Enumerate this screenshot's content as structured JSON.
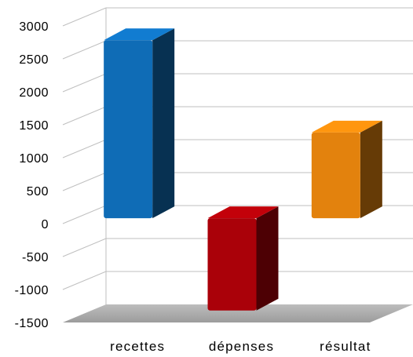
{
  "chart_data": {
    "type": "bar",
    "three_d": true,
    "grid": true,
    "categories": [
      "recettes",
      "dépenses",
      "résultat"
    ],
    "values": [
      2700,
      -1400,
      1300
    ],
    "colors": [
      "#0f6cb6",
      "#aa0109",
      "#e3820d"
    ],
    "ylim": [
      -1500,
      3000
    ],
    "yticks": [
      3000,
      2500,
      2000,
      1500,
      1000,
      500,
      0,
      -500,
      -1000,
      -1500
    ],
    "title": "",
    "xlabel": "",
    "ylabel": ""
  }
}
